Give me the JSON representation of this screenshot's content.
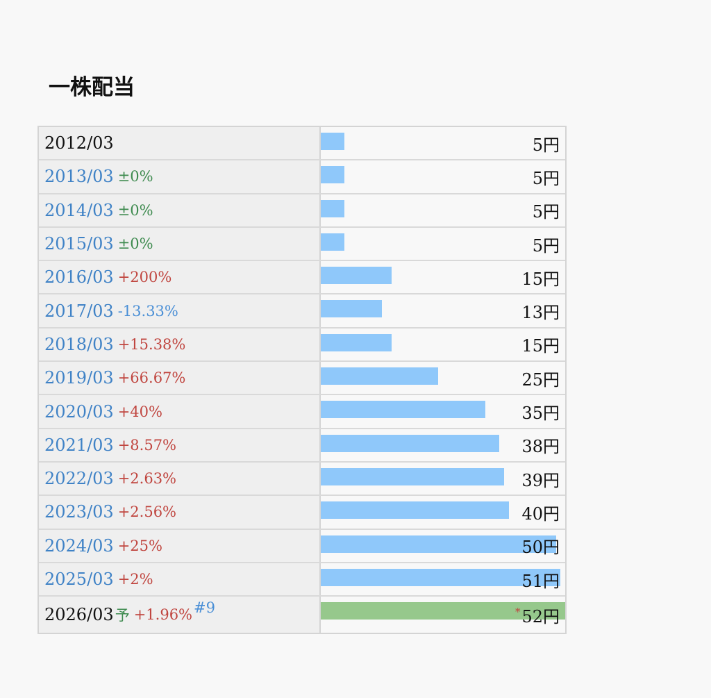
{
  "title": "一株配当",
  "colors": {
    "bar": "#8fc8fa",
    "forecast_bar": "#96c88c",
    "up": "#c0453f",
    "flat": "#3d8a4e",
    "down": "#4a8fd6",
    "link": "#3f82c6"
  },
  "chart_data": {
    "type": "bar",
    "title": "一株配当",
    "unit": "円",
    "xmax": 52,
    "rows": [
      {
        "period": "2012/03",
        "change": "",
        "dir": "none",
        "value": 5,
        "value_label": "5円",
        "linked": false
      },
      {
        "period": "2013/03",
        "change": "±0%",
        "dir": "flat",
        "value": 5,
        "value_label": "5円",
        "linked": true
      },
      {
        "period": "2014/03",
        "change": "±0%",
        "dir": "flat",
        "value": 5,
        "value_label": "5円",
        "linked": true
      },
      {
        "period": "2015/03",
        "change": "±0%",
        "dir": "flat",
        "value": 5,
        "value_label": "5円",
        "linked": true
      },
      {
        "period": "2016/03",
        "change": "+200%",
        "dir": "up",
        "value": 15,
        "value_label": "15円",
        "linked": true
      },
      {
        "period": "2017/03",
        "change": "-13.33%",
        "dir": "down",
        "value": 13,
        "value_label": "13円",
        "linked": true
      },
      {
        "period": "2018/03",
        "change": "+15.38%",
        "dir": "up",
        "value": 15,
        "value_label": "15円",
        "linked": true
      },
      {
        "period": "2019/03",
        "change": "+66.67%",
        "dir": "up",
        "value": 25,
        "value_label": "25円",
        "linked": true
      },
      {
        "period": "2020/03",
        "change": "+40%",
        "dir": "up",
        "value": 35,
        "value_label": "35円",
        "linked": true
      },
      {
        "period": "2021/03",
        "change": "+8.57%",
        "dir": "up",
        "value": 38,
        "value_label": "38円",
        "linked": true
      },
      {
        "period": "2022/03",
        "change": "+2.63%",
        "dir": "up",
        "value": 39,
        "value_label": "39円",
        "linked": true
      },
      {
        "period": "2023/03",
        "change": "+2.56%",
        "dir": "up",
        "value": 40,
        "value_label": "40円",
        "linked": true
      },
      {
        "period": "2024/03",
        "change": "+25%",
        "dir": "up",
        "value": 50,
        "value_label": "50円",
        "linked": true
      },
      {
        "period": "2025/03",
        "change": "+2%",
        "dir": "up",
        "value": 51,
        "value_label": "51円",
        "linked": true
      },
      {
        "period": "2026/03",
        "forecast_mark": "予",
        "change": "+1.96%",
        "dir": "up",
        "value": 52,
        "value_label": "52円",
        "asterisk": "*",
        "note": "#9",
        "linked": false,
        "forecast": true
      }
    ]
  }
}
